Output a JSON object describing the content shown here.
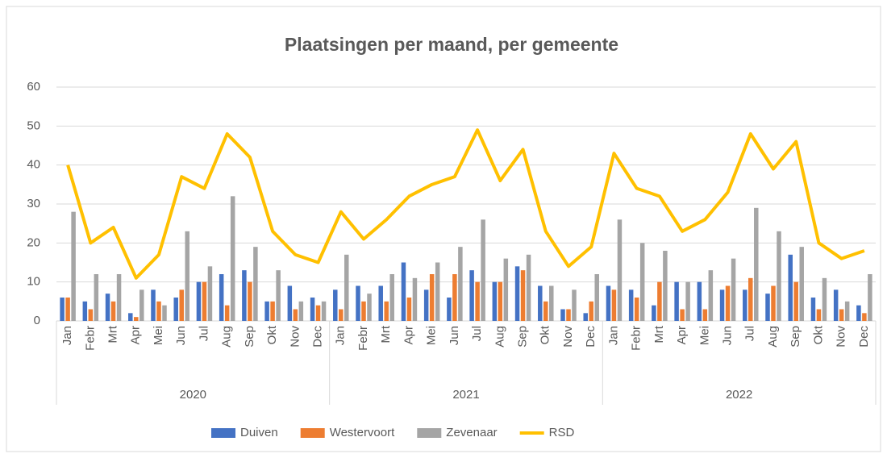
{
  "chart_data": {
    "type": "bar",
    "title": "Plaatsingen per maand, per gemeente",
    "categories": [
      "Jan",
      "Febr",
      "Mrt",
      "Apr",
      "Mei",
      "Jun",
      "Jul",
      "Aug",
      "Sep",
      "Okt",
      "Nov",
      "Dec",
      "Jan",
      "Febr",
      "Mrt",
      "Apr",
      "Mei",
      "Jun",
      "Jul",
      "Aug",
      "Sep",
      "Okt",
      "Nov",
      "Dec",
      "Jan",
      "Febr",
      "Mrt",
      "Apr",
      "Mei",
      "Jun",
      "Jul",
      "Aug",
      "Sep",
      "Okt",
      "Nov",
      "Dec"
    ],
    "groups": [
      "2020",
      "2021",
      "2022"
    ],
    "series": [
      {
        "name": "Duiven",
        "color": "#4472c4",
        "values": [
          6,
          5,
          7,
          2,
          8,
          6,
          10,
          12,
          13,
          5,
          9,
          6,
          8,
          9,
          9,
          15,
          8,
          6,
          13,
          10,
          14,
          9,
          3,
          2,
          9,
          8,
          4,
          10,
          10,
          8,
          8,
          7,
          17,
          6,
          8,
          4
        ]
      },
      {
        "name": "Westervoort",
        "color": "#ed7d31",
        "values": [
          6,
          3,
          5,
          1,
          5,
          8,
          10,
          4,
          10,
          5,
          3,
          4,
          3,
          5,
          5,
          6,
          12,
          12,
          10,
          10,
          13,
          5,
          3,
          5,
          8,
          6,
          10,
          3,
          3,
          9,
          11,
          9,
          10,
          3,
          3,
          2
        ]
      },
      {
        "name": "Zevenaar",
        "color": "#a5a5a5",
        "values": [
          28,
          12,
          12,
          8,
          4,
          23,
          14,
          32,
          19,
          13,
          5,
          5,
          17,
          7,
          12,
          11,
          15,
          19,
          26,
          16,
          17,
          9,
          8,
          12,
          26,
          20,
          18,
          10,
          13,
          16,
          29,
          23,
          19,
          11,
          5,
          12
        ]
      },
      {
        "name": "RSD",
        "color": "#ffc000",
        "type": "line",
        "values": [
          40,
          20,
          24,
          11,
          17,
          37,
          34,
          48,
          42,
          23,
          17,
          15,
          28,
          21,
          26,
          32,
          35,
          37,
          49,
          36,
          44,
          23,
          14,
          19,
          43,
          34,
          32,
          23,
          26,
          33,
          48,
          39,
          46,
          20,
          16,
          18
        ]
      }
    ],
    "ylim": [
      0,
      60
    ],
    "yticks": [
      0,
      10,
      20,
      30,
      40,
      50,
      60
    ],
    "grid": true,
    "legend": "bottom"
  }
}
